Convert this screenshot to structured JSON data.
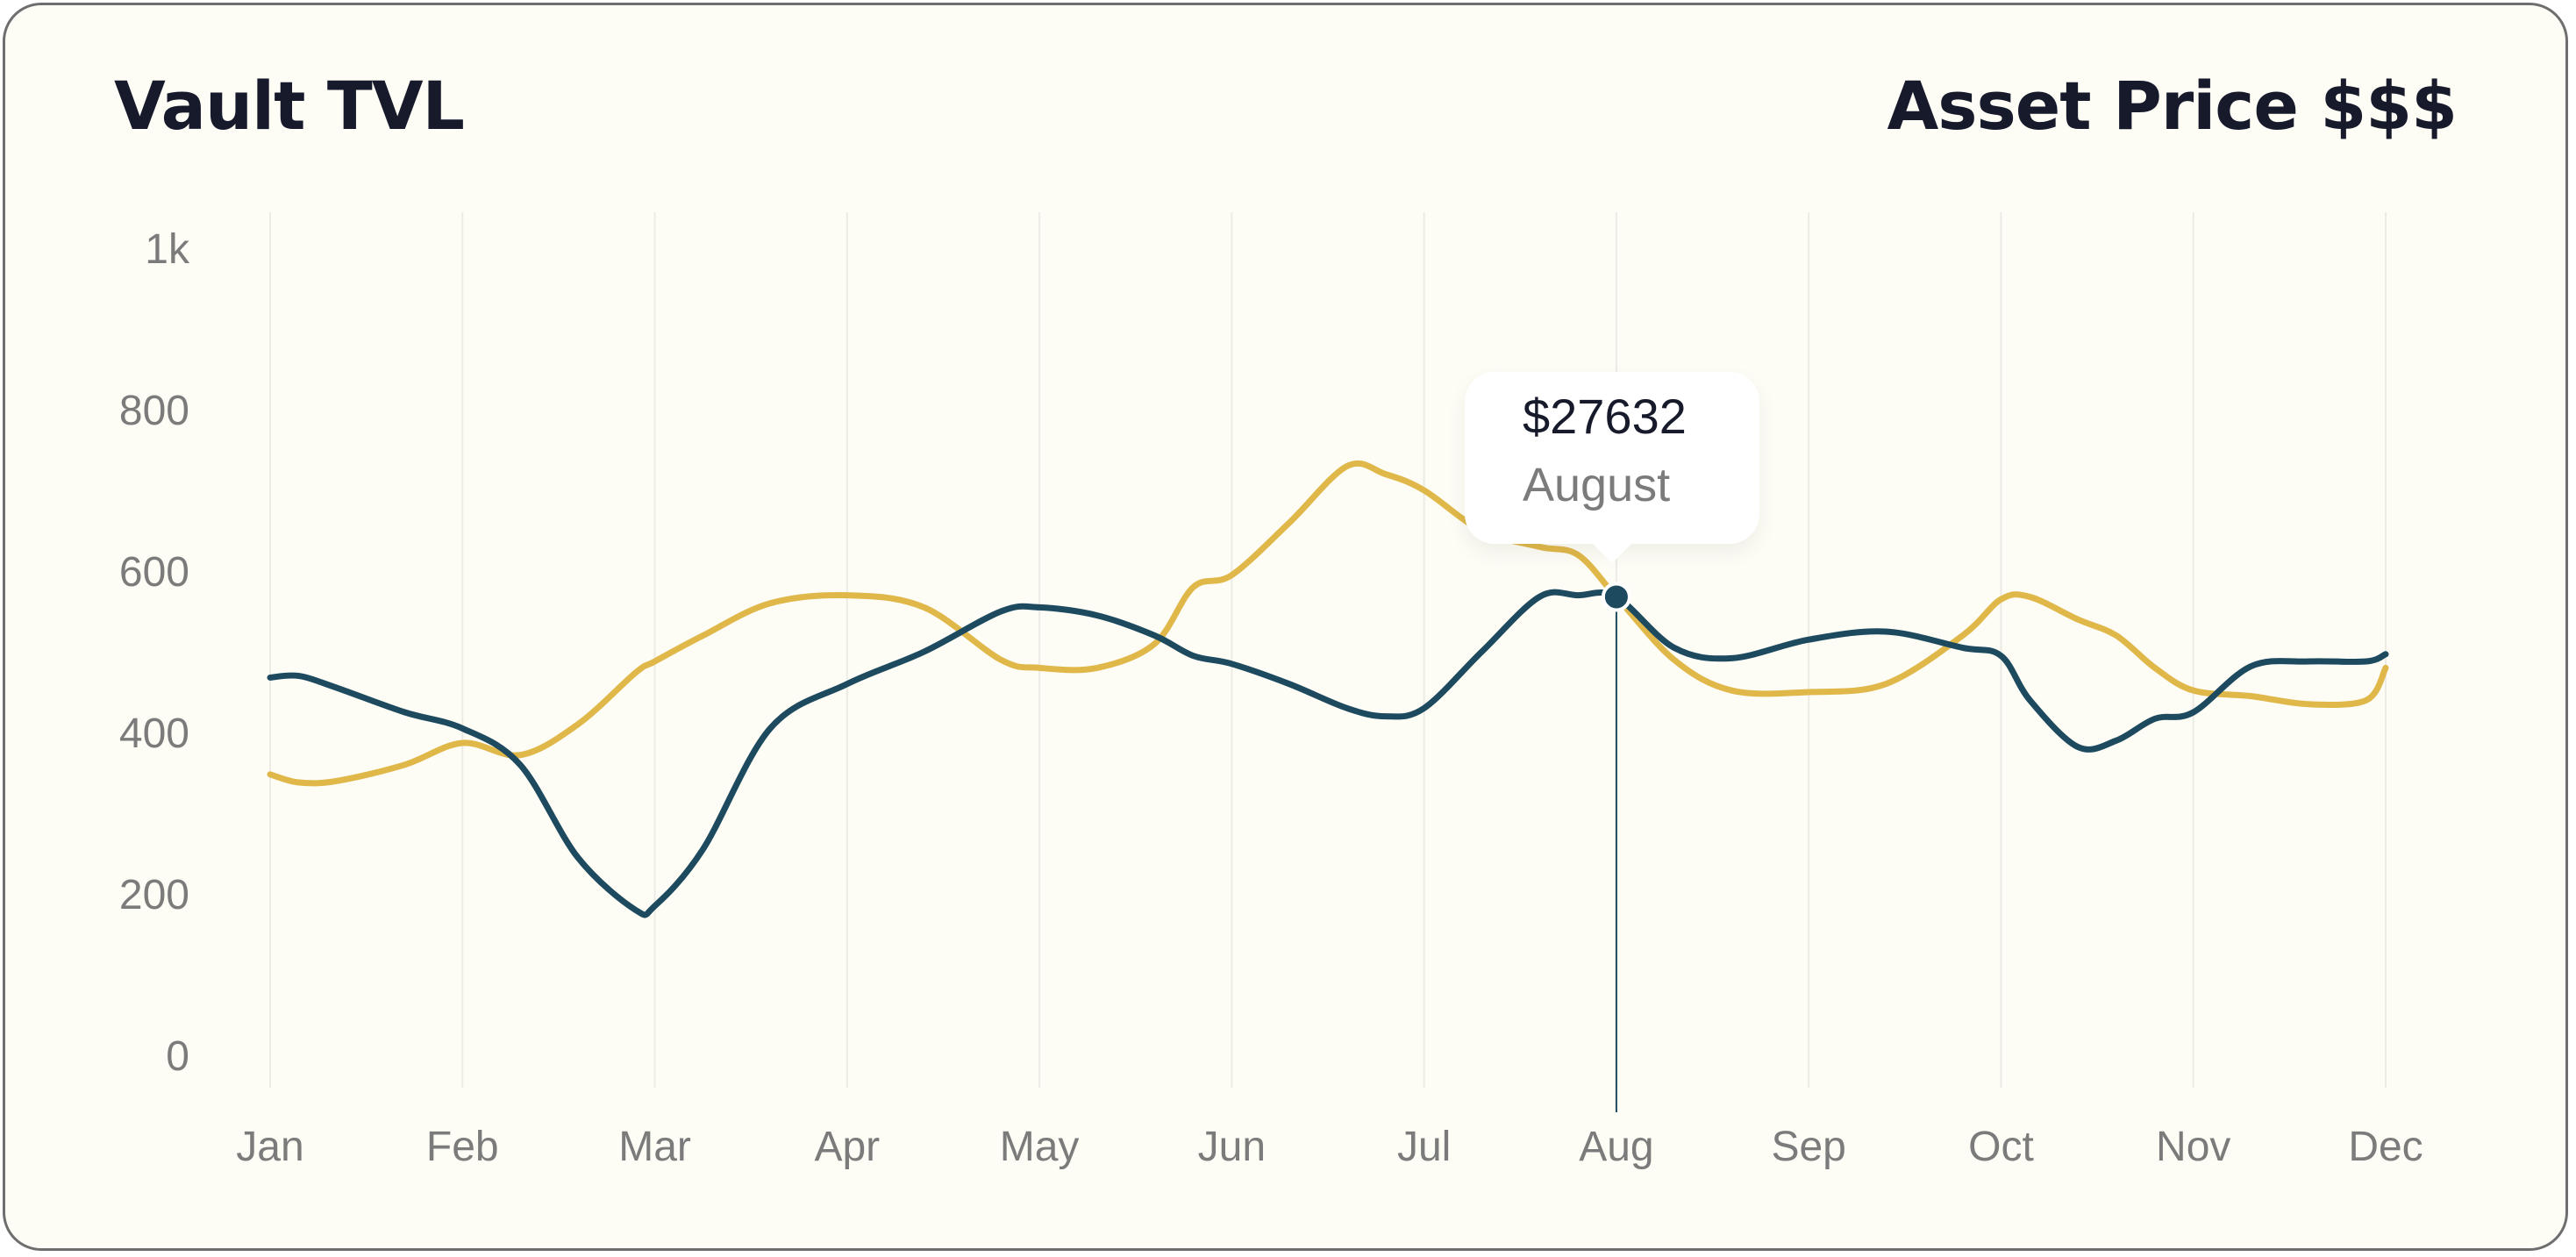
{
  "card": {
    "title_left": "Vault TVL",
    "title_right": "Asset Price $$$"
  },
  "tooltip": {
    "value": "$27632",
    "label": "August"
  },
  "chart_data": {
    "type": "line",
    "categories": [
      "Jan",
      "Feb",
      "Mar",
      "Apr",
      "May",
      "Jun",
      "Jul",
      "Aug",
      "Sep",
      "Oct",
      "Nov",
      "Dec"
    ],
    "yticks": [
      "0",
      "200",
      "400",
      "600",
      "800",
      "1k"
    ],
    "ylim": [
      0,
      1000
    ],
    "grid": "vertical",
    "x": [
      0,
      0.15,
      0.35,
      0.7,
      1,
      1.3,
      1.6,
      1.9,
      2,
      2.25,
      2.6,
      3,
      3.4,
      3.8,
      4,
      4.3,
      4.6,
      4.8,
      5,
      5.3,
      5.6,
      5.8,
      6,
      6.3,
      6.6,
      6.8,
      7,
      7.3,
      7.6,
      8,
      8.4,
      8.8,
      9,
      9.15,
      9.4,
      9.6,
      9.8,
      10,
      10.3,
      10.6,
      10.9,
      11
    ],
    "series": [
      {
        "color": "#1d4a5f",
        "values": [
          468,
          470,
          455,
          425,
          405,
          360,
          245,
          180,
          185,
          255,
          405,
          460,
          500,
          550,
          555,
          545,
          520,
          495,
          485,
          460,
          430,
          420,
          430,
          500,
          568,
          570,
          568,
          505,
          492,
          515,
          525,
          505,
          495,
          440,
          382,
          390,
          417,
          425,
          482,
          488,
          488,
          497
        ]
      },
      {
        "color": "#e0b84a",
        "values": [
          348,
          338,
          340,
          360,
          387,
          372,
          410,
          474,
          488,
          520,
          560,
          570,
          555,
          490,
          480,
          480,
          510,
          580,
          595,
          660,
          730,
          720,
          700,
          650,
          630,
          620,
          568,
          490,
          452,
          450,
          460,
          520,
          565,
          568,
          540,
          520,
          480,
          452,
          445,
          435,
          440,
          480
        ]
      }
    ]
  }
}
